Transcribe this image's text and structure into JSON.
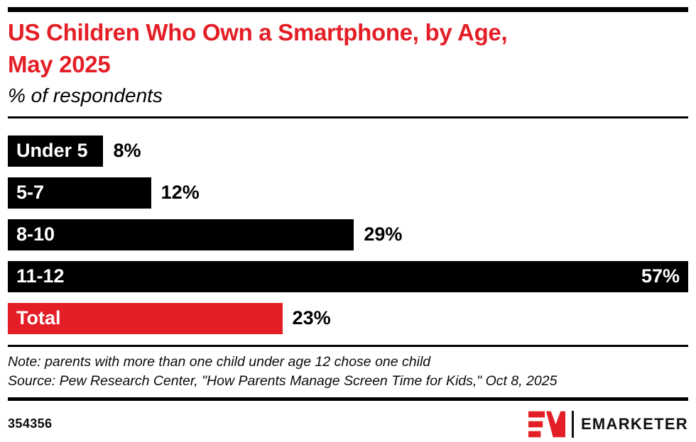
{
  "header": {
    "title_line1": "US Children Who Own a Smartphone, by Age,",
    "title_line2": "May 2025",
    "subtitle": "% of respondents"
  },
  "chart_data": {
    "type": "bar",
    "orientation": "horizontal",
    "title": "US Children Who Own a Smartphone, by Age, May 2025",
    "subtitle": "% of respondents",
    "categories": [
      "Under 5",
      "5-7",
      "8-10",
      "11-12",
      "Total"
    ],
    "values": [
      8,
      12,
      29,
      57,
      23
    ],
    "value_labels": [
      "8%",
      "12%",
      "29%",
      "57%",
      "23%"
    ],
    "bar_colors": [
      "#000000",
      "#000000",
      "#000000",
      "#000000",
      "#e41e26"
    ],
    "value_label_inside": [
      false,
      false,
      false,
      true,
      false
    ],
    "xlim": [
      0,
      57
    ],
    "grid": false,
    "legend": false
  },
  "footer": {
    "note": "Note: parents with more than one child under age 12 chose one child",
    "source": "Source: Pew Research Center, \"How Parents Manage Screen Time for Kids,\" Oct 8, 2025",
    "chart_id": "354356",
    "brand": "EMARKETER"
  },
  "colors": {
    "accent_red": "#e41e26",
    "bar_black": "#000000"
  }
}
